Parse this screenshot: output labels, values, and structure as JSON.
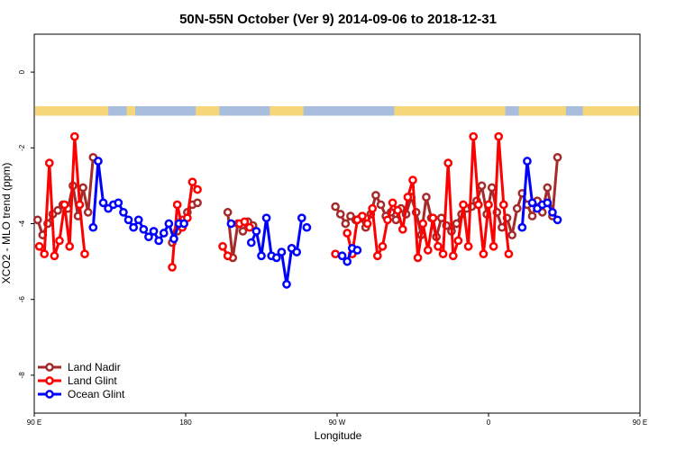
{
  "chart_data": {
    "type": "line",
    "title": "50N-55N October (Ver 9)   2014-09-06 to 2018-12-31",
    "xlabel": "Longitude",
    "ylabel": "XCO2 - MLO trend (ppm)",
    "xlim": [
      -180,
      180
    ],
    "ylim": [
      -9,
      1
    ],
    "x_ticks": [
      {
        "value": -180,
        "label": "90 E"
      },
      {
        "value": -90,
        "label": "180"
      },
      {
        "value": 0,
        "label": "90 W"
      },
      {
        "value": 90,
        "label": "0"
      },
      {
        "value": 180,
        "label": "90 E"
      }
    ],
    "y_ticks": [
      {
        "value": 0,
        "label": "0"
      },
      {
        "value": -2,
        "label": "-2"
      },
      {
        "value": -4,
        "label": "-4"
      },
      {
        "value": -6,
        "label": "-6"
      },
      {
        "value": -8,
        "label": "-8"
      }
    ],
    "legend_position": "bottom-left",
    "grid": false,
    "land_strip": {
      "y_top": -0.9,
      "y_bottom": -1.15,
      "land_color": "#f5d77a",
      "ocean_color": "#a8bedc"
    },
    "series": [
      {
        "name": "Land Nadir",
        "color": "#a52a2a",
        "segments": [
          {
            "x": [
              -178,
              -175,
              -172,
              -169,
              -166,
              -163,
              -160,
              -157,
              -154,
              -151,
              -148,
              -145
            ],
            "y": [
              -3.9,
              -4.3,
              -4.0,
              -3.75,
              -3.65,
              -3.5,
              -3.6,
              -3.0,
              -3.8,
              -3.05,
              -3.7,
              -2.25
            ]
          },
          {
            "x": [
              -98,
              -95,
              -92,
              -89,
              -86,
              -83
            ],
            "y": [
              -4.5,
              -4.2,
              -3.9,
              -3.7,
              -3.5,
              -3.45
            ]
          },
          {
            "x": [
              -65,
              -62,
              -59,
              -56,
              -53,
              -50
            ],
            "y": [
              -3.7,
              -4.9,
              -4.0,
              -4.2,
              -3.95,
              -4.05
            ]
          },
          {
            "x": [
              -1,
              2,
              5,
              8,
              11,
              14,
              17,
              20,
              23,
              26,
              29,
              32,
              35,
              38,
              41,
              44,
              47,
              50,
              53,
              56,
              59,
              62,
              65,
              68,
              71,
              74,
              77,
              80,
              83,
              86,
              89,
              92,
              95,
              98,
              101,
              104,
              107,
              110,
              113,
              116,
              119,
              122,
              125,
              128,
              131
            ],
            "y": [
              -3.55,
              -3.75,
              -4.0,
              -3.8,
              -3.9,
              -3.85,
              -4.1,
              -3.75,
              -3.25,
              -3.5,
              -3.8,
              -3.7,
              -3.9,
              -3.6,
              -3.75,
              -3.3,
              -3.7,
              -4.3,
              -3.3,
              -3.85,
              -4.35,
              -3.85,
              -4.05,
              -4.2,
              -4.0,
              -3.75,
              -3.6,
              -3.55,
              -3.4,
              -3.0,
              -3.75,
              -3.05,
              -3.7,
              -4.1,
              -3.85,
              -4.3,
              -3.6,
              -3.2,
              -3.5,
              -3.8,
              -3.4,
              -3.7,
              -3.05,
              -3.8,
              -2.25
            ]
          }
        ]
      },
      {
        "name": "Land Glint",
        "color": "#ff0000",
        "segments": [
          {
            "x": [
              -177,
              -174,
              -171,
              -168,
              -165,
              -162,
              -159,
              -156,
              -153,
              -150
            ],
            "y": [
              -4.6,
              -4.8,
              -2.4,
              -4.85,
              -4.45,
              -3.5,
              -4.6,
              -1.7,
              -3.5,
              -4.8
            ]
          },
          {
            "x": [
              -98,
              -95,
              -92,
              -89,
              -86,
              -83
            ],
            "y": [
              -5.15,
              -3.5,
              -4.1,
              -3.85,
              -2.9,
              -3.1
            ]
          },
          {
            "x": [
              -68,
              -65
            ],
            "y": [
              -4.6,
              -4.85
            ]
          },
          {
            "x": [
              -58,
              -55,
              -52
            ],
            "y": [
              -4.0,
              -3.95,
              -4.1
            ]
          },
          {
            "x": [
              -1
            ],
            "y": [
              -4.8
            ]
          },
          {
            "x": [
              6,
              9,
              12,
              15,
              18,
              21,
              24,
              27,
              30,
              33,
              36,
              39,
              42,
              45,
              48,
              51,
              54,
              57,
              60,
              63,
              66,
              69,
              72,
              75,
              78,
              81,
              84,
              87,
              90,
              93,
              96,
              99,
              102
            ],
            "y": [
              -4.25,
              -4.8,
              -3.9,
              -3.8,
              -4.0,
              -3.6,
              -4.85,
              -4.6,
              -3.9,
              -3.45,
              -3.65,
              -4.15,
              -3.3,
              -2.85,
              -4.9,
              -4.0,
              -4.7,
              -3.85,
              -4.6,
              -4.8,
              -2.4,
              -4.85,
              -4.45,
              -3.5,
              -4.6,
              -1.7,
              -3.5,
              -4.8,
              -3.5,
              -4.6,
              -1.7,
              -3.5,
              -4.8
            ]
          }
        ]
      },
      {
        "name": "Ocean Glint",
        "color": "#0000ff",
        "segments": [
          {
            "x": [
              -145,
              -142,
              -139,
              -136,
              -133,
              -130,
              -127,
              -124,
              -121,
              -118,
              -115,
              -112,
              -109,
              -106,
              -103,
              -100,
              -97,
              -94,
              -91
            ],
            "y": [
              -4.1,
              -2.35,
              -3.45,
              -3.6,
              -3.5,
              -3.45,
              -3.7,
              -3.9,
              -4.1,
              -3.9,
              -4.15,
              -4.35,
              -4.2,
              -4.45,
              -4.25,
              -4.0,
              -4.4,
              -4.0,
              -4.0
            ]
          },
          {
            "x": [
              -63
            ],
            "y": [
              -4.0
            ]
          },
          {
            "x": [
              -51,
              -48,
              -45,
              -42,
              -39,
              -36,
              -33,
              -30,
              -27,
              -24,
              -21
            ],
            "y": [
              -4.5,
              -4.2,
              -4.85,
              -3.85,
              -4.85,
              -4.9,
              -4.75,
              -5.6,
              -4.65,
              -4.75,
              -3.85
            ]
          },
          {
            "x": [
              -18
            ],
            "y": [
              -4.1
            ]
          },
          {
            "x": [
              3,
              6,
              9,
              12
            ],
            "y": [
              -4.85,
              -5.0,
              -4.65,
              -4.7
            ]
          },
          {
            "x": [
              110,
              113,
              116,
              119,
              122,
              125,
              128,
              131
            ],
            "y": [
              -4.1,
              -2.35,
              -3.45,
              -3.6,
              -3.5,
              -3.45,
              -3.7,
              -3.9
            ]
          }
        ]
      }
    ]
  }
}
